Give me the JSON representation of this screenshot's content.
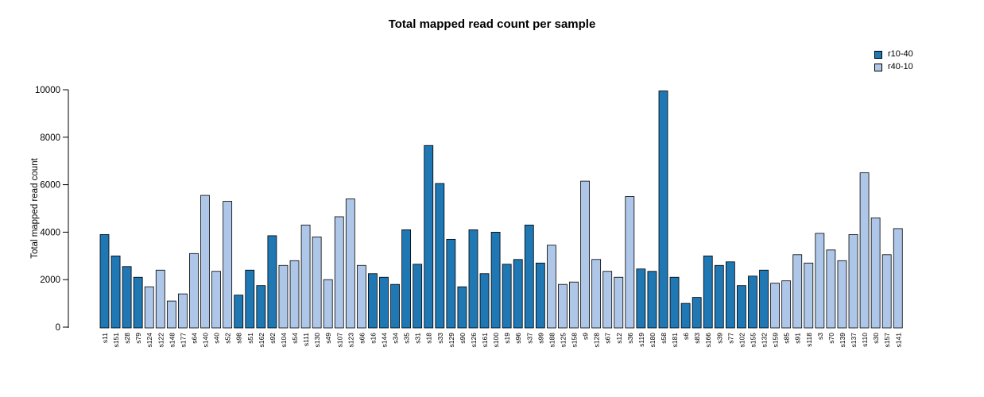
{
  "title": "Total mapped read count per sample",
  "chart_data": {
    "type": "bar",
    "title": "Total mapped read count per sample",
    "xlabel": "",
    "ylabel": "Total mapped read count",
    "ylim": [
      0,
      10000
    ],
    "yticks": [
      0,
      2000,
      4000,
      6000,
      8000,
      10000
    ],
    "grid": false,
    "legend": {
      "position": "top-right",
      "entries": [
        {
          "label": "r10-40",
          "color": "#1F77B4"
        },
        {
          "label": "r40-10",
          "color": "#AEC7E8"
        }
      ]
    },
    "bar_border_color": "#000000",
    "categories": [
      "s11",
      "s151",
      "s28",
      "s79",
      "s124",
      "s122",
      "s148",
      "s177",
      "s64",
      "s140",
      "s40",
      "s52",
      "s98",
      "s51",
      "s162",
      "s92",
      "s104",
      "s54",
      "s111",
      "s130",
      "s49",
      "s107",
      "s123",
      "s66",
      "s16",
      "s144",
      "s34",
      "s35",
      "s31",
      "s18",
      "s33",
      "s129",
      "s90",
      "s126",
      "s161",
      "s100",
      "s19",
      "s96",
      "s37",
      "s99",
      "s188",
      "s125",
      "s158",
      "s9",
      "s128",
      "s67",
      "s12",
      "s36",
      "s119",
      "s180",
      "s58",
      "s181",
      "s6",
      "s83",
      "s166",
      "s39",
      "s77",
      "s102",
      "s155",
      "s132",
      "s159",
      "s85",
      "s91",
      "s118",
      "s3",
      "s70",
      "s139",
      "s137",
      "s110",
      "s30",
      "s157",
      "s141"
    ],
    "values": [
      3900,
      3000,
      2550,
      2100,
      1700,
      2400,
      1100,
      1400,
      3100,
      5550,
      2350,
      5300,
      1350,
      2400,
      1750,
      3850,
      2600,
      2800,
      4300,
      3800,
      2000,
      4650,
      5400,
      2600,
      2250,
      2100,
      1800,
      4100,
      2650,
      7650,
      6050,
      3700,
      1700,
      4100,
      2250,
      4000,
      2650,
      2850,
      4300,
      2700,
      3450,
      1800,
      1900,
      6150,
      2850,
      2350,
      2100,
      5500,
      2450,
      2350,
      9950,
      2100,
      1000,
      1250,
      3000,
      2600,
      2750,
      1750,
      2150,
      2400,
      1850,
      1950,
      3050,
      2700,
      3950,
      3250,
      2800,
      3900,
      6500,
      4600,
      3050,
      4150
    ],
    "groups": [
      "r10-40",
      "r10-40",
      "r10-40",
      "r10-40",
      "r40-10",
      "r40-10",
      "r40-10",
      "r40-10",
      "r40-10",
      "r40-10",
      "r40-10",
      "r40-10",
      "r10-40",
      "r10-40",
      "r10-40",
      "r10-40",
      "r40-10",
      "r40-10",
      "r40-10",
      "r40-10",
      "r40-10",
      "r40-10",
      "r40-10",
      "r40-10",
      "r10-40",
      "r10-40",
      "r10-40",
      "r10-40",
      "r10-40",
      "r10-40",
      "r10-40",
      "r10-40",
      "r10-40",
      "r10-40",
      "r10-40",
      "r10-40",
      "r10-40",
      "r10-40",
      "r10-40",
      "r10-40",
      "r40-10",
      "r40-10",
      "r40-10",
      "r40-10",
      "r40-10",
      "r40-10",
      "r40-10",
      "r40-10",
      "r10-40",
      "r10-40",
      "r10-40",
      "r10-40",
      "r10-40",
      "r10-40",
      "r10-40",
      "r10-40",
      "r10-40",
      "r10-40",
      "r10-40",
      "r10-40",
      "r40-10",
      "r40-10",
      "r40-10",
      "r40-10",
      "r40-10",
      "r40-10",
      "r40-10",
      "r40-10",
      "r40-10",
      "r40-10",
      "r40-10",
      "r40-10"
    ]
  }
}
